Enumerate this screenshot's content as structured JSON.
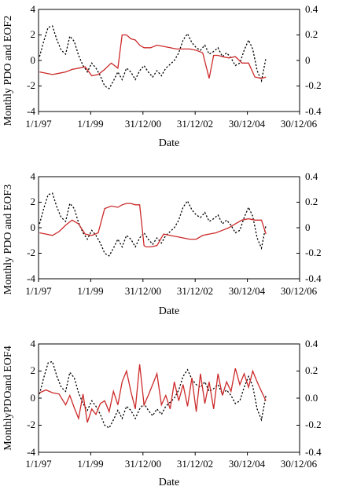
{
  "colors": {
    "pdo": "#000000",
    "eof": "#cc2a2a",
    "axis": "#000000"
  },
  "chart_data": [
    {
      "type": "line",
      "ylabel": "Monthly PDO and EOF2",
      "xlabel": "Date",
      "ylim": [
        -4,
        4
      ],
      "y2lim": [
        -0.4,
        0.4
      ],
      "yticks": [
        "4",
        "2",
        "0",
        "-2",
        "-4"
      ],
      "y2ticks": [
        "0.4",
        "0.2",
        "0",
        "-0.2",
        "-0.4"
      ],
      "xticks": [
        "1/1/97",
        "1/1/99",
        "31/12/00",
        "31/12/02",
        "30/12/04",
        "30/12/06"
      ],
      "xlim": [
        "1997-01-01",
        "2006-12-30"
      ],
      "series": [
        {
          "axis": "left",
          "x": [
            "1997-01",
            "1997-03",
            "1997-05",
            "1997-07",
            "1997-09",
            "1997-11",
            "1998-01",
            "1998-03",
            "1998-05",
            "1998-07",
            "1998-09",
            "1998-11",
            "1999-01",
            "1999-03",
            "1999-05",
            "1999-07",
            "1999-09",
            "1999-11",
            "2000-01",
            "2000-03",
            "2000-05",
            "2000-07",
            "2000-09",
            "2000-11",
            "2001-01",
            "2001-03",
            "2001-05",
            "2001-07",
            "2001-09",
            "2001-11",
            "2002-01",
            "2002-03",
            "2002-05",
            "2002-07",
            "2002-09",
            "2002-11",
            "2003-01",
            "2003-03",
            "2003-05",
            "2003-07",
            "2003-09",
            "2003-11",
            "2004-01",
            "2004-03",
            "2004-05",
            "2004-07",
            "2004-09",
            "2004-11",
            "2005-01",
            "2005-03",
            "2005-05",
            "2005-07",
            "2005-09"
          ],
          "values": [
            0.3,
            1.5,
            2.6,
            2.7,
            1.6,
            0.8,
            0.5,
            1.9,
            1.5,
            0.4,
            -0.4,
            -0.9,
            -0.2,
            -0.6,
            -1.2,
            -2.0,
            -2.2,
            -1.6,
            -0.9,
            -1.5,
            -0.6,
            -0.9,
            -1.5,
            -0.8,
            -0.4,
            -0.9,
            -1.3,
            -0.8,
            -1.2,
            -0.6,
            -0.3,
            0.0,
            0.6,
            1.6,
            2.1,
            1.4,
            1.0,
            0.8,
            1.2,
            0.5,
            0.7,
            1.0,
            0.3,
            0.6,
            0.2,
            -0.4,
            -0.2,
            0.8,
            1.6,
            0.9,
            -0.8,
            -1.6,
            0.2
          ]
        },
        {
          "axis": "right",
          "x": [
            "1997-01",
            "1997-04",
            "1997-07",
            "1997-10",
            "1998-01",
            "1998-04",
            "1998-07",
            "1998-10",
            "1999-01",
            "1999-04",
            "1999-07",
            "1999-10",
            "2000-01",
            "2000-03",
            "2000-05",
            "2000-07",
            "2000-09",
            "2000-11",
            "2001-01",
            "2001-04",
            "2001-07",
            "2001-10",
            "2002-01",
            "2002-04",
            "2002-07",
            "2002-10",
            "2003-01",
            "2003-04",
            "2003-07",
            "2003-09",
            "2003-11",
            "2004-01",
            "2004-04",
            "2004-07",
            "2004-10",
            "2005-01",
            "2005-04",
            "2005-07",
            "2005-09"
          ],
          "values": [
            -0.09,
            -0.1,
            -0.11,
            -0.1,
            -0.09,
            -0.07,
            -0.06,
            -0.05,
            -0.12,
            -0.11,
            -0.07,
            -0.02,
            -0.06,
            0.2,
            0.2,
            0.17,
            0.16,
            0.12,
            0.1,
            0.1,
            0.12,
            0.11,
            0.1,
            0.09,
            0.09,
            0.09,
            0.08,
            0.06,
            -0.14,
            0.04,
            0.04,
            0.03,
            0.02,
            0.03,
            -0.02,
            -0.02,
            -0.13,
            -0.14,
            -0.13
          ]
        }
      ]
    },
    {
      "type": "line",
      "ylabel": "Monthly PDO and EOF3",
      "xlabel": "Date",
      "ylim": [
        -4,
        4
      ],
      "y2lim": [
        -0.4,
        0.4
      ],
      "yticks": [
        "4",
        "2",
        "0",
        "-2",
        "-4"
      ],
      "y2ticks": [
        "0.4",
        "0.2",
        "0",
        "-0.2",
        "-0.4"
      ],
      "xticks": [
        "1/1/97",
        "1/1/99",
        "31/12/00",
        "31/12/02",
        "30/12/04",
        "30/12/06"
      ],
      "xlim": [
        "1997-01-01",
        "2006-12-30"
      ],
      "series": [
        {
          "axis": "left",
          "x": [
            "1997-01",
            "1997-03",
            "1997-05",
            "1997-07",
            "1997-09",
            "1997-11",
            "1998-01",
            "1998-03",
            "1998-05",
            "1998-07",
            "1998-09",
            "1998-11",
            "1999-01",
            "1999-03",
            "1999-05",
            "1999-07",
            "1999-09",
            "1999-11",
            "2000-01",
            "2000-03",
            "2000-05",
            "2000-07",
            "2000-09",
            "2000-11",
            "2001-01",
            "2001-03",
            "2001-05",
            "2001-07",
            "2001-09",
            "2001-11",
            "2002-01",
            "2002-03",
            "2002-05",
            "2002-07",
            "2002-09",
            "2002-11",
            "2003-01",
            "2003-03",
            "2003-05",
            "2003-07",
            "2003-09",
            "2003-11",
            "2004-01",
            "2004-03",
            "2004-05",
            "2004-07",
            "2004-09",
            "2004-11",
            "2005-01",
            "2005-03",
            "2005-05",
            "2005-07",
            "2005-09"
          ],
          "values": [
            0.3,
            1.5,
            2.6,
            2.7,
            1.6,
            0.8,
            0.5,
            1.9,
            1.5,
            0.4,
            -0.4,
            -0.9,
            -0.2,
            -0.6,
            -1.2,
            -2.0,
            -2.2,
            -1.6,
            -0.9,
            -1.5,
            -0.6,
            -0.9,
            -1.5,
            -0.8,
            -0.4,
            -0.9,
            -1.3,
            -0.8,
            -1.2,
            -0.6,
            -0.3,
            0.0,
            0.6,
            1.6,
            2.1,
            1.4,
            1.0,
            0.8,
            1.2,
            0.5,
            0.7,
            1.0,
            0.3,
            0.6,
            0.2,
            -0.4,
            -0.2,
            0.8,
            1.6,
            0.9,
            -0.8,
            -1.6,
            0.2
          ]
        },
        {
          "axis": "right",
          "x": [
            "1997-01",
            "1997-04",
            "1997-07",
            "1997-10",
            "1998-01",
            "1998-04",
            "1998-07",
            "1998-10",
            "1999-01",
            "1999-04",
            "1999-07",
            "1999-10",
            "2000-01",
            "2000-03",
            "2000-05",
            "2000-07",
            "2000-09",
            "2000-11",
            "2001-01",
            "2001-02",
            "2001-04",
            "2001-07",
            "2001-10",
            "2002-01",
            "2002-04",
            "2002-07",
            "2002-10",
            "2003-01",
            "2003-04",
            "2003-07",
            "2003-10",
            "2004-01",
            "2004-04",
            "2004-07",
            "2004-10",
            "2005-01",
            "2005-04",
            "2005-07",
            "2005-09"
          ],
          "values": [
            -0.04,
            -0.05,
            -0.06,
            -0.03,
            0.02,
            0.06,
            0.03,
            -0.05,
            -0.06,
            -0.04,
            0.15,
            0.17,
            0.16,
            0.18,
            0.19,
            0.19,
            0.18,
            0.18,
            -0.14,
            -0.15,
            -0.15,
            -0.14,
            -0.05,
            -0.06,
            -0.07,
            -0.08,
            -0.09,
            -0.09,
            -0.06,
            -0.05,
            -0.04,
            -0.02,
            0.0,
            0.03,
            0.06,
            0.07,
            0.06,
            0.06,
            -0.05
          ]
        }
      ]
    },
    {
      "type": "line",
      "ylabel": "MonthlyPDOand EOF4",
      "xlabel": "Date",
      "ylim": [
        -4,
        4
      ],
      "y2lim": [
        -0.4,
        0.4
      ],
      "yticks": [
        "4",
        "2",
        "0",
        "-2",
        "-4"
      ],
      "y2ticks": [
        "0.4",
        "0.2",
        "0.0",
        "-0.2",
        "-0.4"
      ],
      "xticks": [
        "1/1/97",
        "1/1/99",
        "31/12/00",
        "31/12/02",
        "30/12/04",
        "30/12/06"
      ],
      "xlim": [
        "1997-01-01",
        "2006-12-30"
      ],
      "series": [
        {
          "axis": "left",
          "x": [
            "1997-01",
            "1997-03",
            "1997-05",
            "1997-07",
            "1997-09",
            "1997-11",
            "1998-01",
            "1998-03",
            "1998-05",
            "1998-07",
            "1998-09",
            "1998-11",
            "1999-01",
            "1999-03",
            "1999-05",
            "1999-07",
            "1999-09",
            "1999-11",
            "2000-01",
            "2000-03",
            "2000-05",
            "2000-07",
            "2000-09",
            "2000-11",
            "2001-01",
            "2001-03",
            "2001-05",
            "2001-07",
            "2001-09",
            "2001-11",
            "2002-01",
            "2002-03",
            "2002-05",
            "2002-07",
            "2002-09",
            "2002-11",
            "2003-01",
            "2003-03",
            "2003-05",
            "2003-07",
            "2003-09",
            "2003-11",
            "2004-01",
            "2004-03",
            "2004-05",
            "2004-07",
            "2004-09",
            "2004-11",
            "2005-01",
            "2005-03",
            "2005-05",
            "2005-07",
            "2005-09"
          ],
          "values": [
            0.3,
            1.5,
            2.6,
            2.7,
            1.6,
            0.8,
            0.5,
            1.9,
            1.5,
            0.4,
            -0.4,
            -0.9,
            -0.2,
            -0.6,
            -1.2,
            -2.0,
            -2.2,
            -1.6,
            -0.9,
            -1.5,
            -0.6,
            -0.9,
            -1.5,
            -0.8,
            -0.4,
            -0.9,
            -1.3,
            -0.8,
            -1.2,
            -0.6,
            -0.3,
            0.0,
            0.6,
            1.6,
            2.1,
            1.4,
            1.0,
            0.8,
            1.2,
            0.5,
            0.7,
            1.0,
            0.3,
            0.6,
            0.2,
            -0.4,
            -0.2,
            0.8,
            1.6,
            0.9,
            -0.8,
            -1.6,
            0.2
          ]
        },
        {
          "axis": "right",
          "x": [
            "1997-01",
            "1997-04",
            "1997-07",
            "1997-10",
            "1998-01",
            "1998-03",
            "1998-05",
            "1998-07",
            "1998-09",
            "1998-11",
            "1999-01",
            "1999-03",
            "1999-05",
            "1999-07",
            "1999-09",
            "1999-11",
            "2000-01",
            "2000-03",
            "2000-05",
            "2000-07",
            "2000-09",
            "2000-11",
            "2001-01",
            "2001-03",
            "2001-05",
            "2001-07",
            "2001-09",
            "2001-11",
            "2002-01",
            "2002-03",
            "2002-05",
            "2002-07",
            "2002-09",
            "2002-11",
            "2003-01",
            "2003-03",
            "2003-05",
            "2003-07",
            "2003-09",
            "2003-11",
            "2004-01",
            "2004-03",
            "2004-05",
            "2004-07",
            "2004-09",
            "2004-11",
            "2005-01",
            "2005-03",
            "2005-05",
            "2005-07",
            "2005-09"
          ],
          "values": [
            0.04,
            0.06,
            0.04,
            0.03,
            -0.05,
            0.02,
            -0.07,
            -0.15,
            0.03,
            -0.18,
            -0.08,
            -0.12,
            -0.04,
            -0.02,
            -0.1,
            0.05,
            -0.05,
            0.12,
            0.2,
            0.05,
            -0.08,
            0.25,
            -0.05,
            0.02,
            0.1,
            0.18,
            -0.05,
            0.02,
            -0.08,
            0.12,
            -0.02,
            0.1,
            -0.06,
            0.15,
            -0.1,
            0.18,
            -0.04,
            0.12,
            -0.08,
            0.18,
            0.02,
            0.12,
            0.05,
            0.22,
            0.1,
            0.18,
            0.08,
            0.2,
            0.12,
            0.05,
            -0.02
          ]
        }
      ]
    }
  ]
}
